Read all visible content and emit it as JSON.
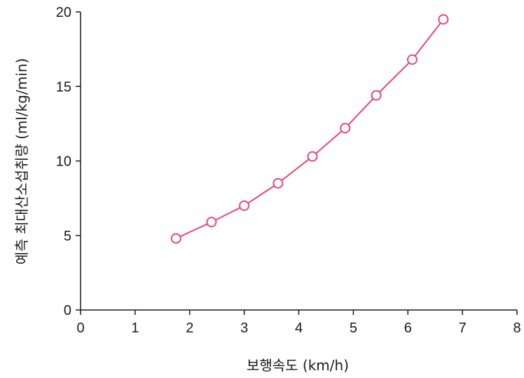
{
  "chart_data": {
    "type": "line",
    "xlabel": "보행속도 (km/h)",
    "ylabel": "예측 최대산소섭취량 (ml/kg/min)",
    "xlim": [
      0,
      8
    ],
    "ylim": [
      0,
      20
    ],
    "xticks": [
      0,
      1,
      2,
      3,
      4,
      5,
      6,
      7,
      8
    ],
    "yticks": [
      0,
      5,
      10,
      15,
      20
    ],
    "xtick_labels": [
      "0",
      "1",
      "2",
      "3",
      "4",
      "5",
      "6",
      "7",
      "8"
    ],
    "ytick_labels": [
      "0",
      "5",
      "10",
      "15",
      "20"
    ],
    "grid": false,
    "series": [
      {
        "color": "#e8457c",
        "marker": "open-circle",
        "x": [
          1.75,
          2.4,
          3.0,
          3.62,
          4.25,
          4.85,
          5.42,
          6.08,
          6.65
        ],
        "y": [
          4.8,
          5.9,
          7.0,
          8.5,
          10.3,
          12.2,
          14.4,
          16.8,
          19.5
        ]
      }
    ]
  }
}
